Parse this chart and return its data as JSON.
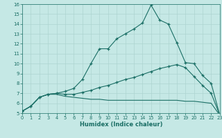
{
  "xlabel": "Humidex (Indice chaleur)",
  "xlim": [
    0,
    23
  ],
  "ylim": [
    5,
    16
  ],
  "xticks": [
    0,
    1,
    2,
    3,
    4,
    5,
    6,
    7,
    8,
    9,
    10,
    11,
    12,
    13,
    14,
    15,
    16,
    17,
    18,
    19,
    20,
    21,
    22,
    23
  ],
  "yticks": [
    5,
    6,
    7,
    8,
    9,
    10,
    11,
    12,
    13,
    14,
    15,
    16
  ],
  "bg_color": "#c5e8e5",
  "grid_color": "#aed4d0",
  "line_color": "#1a6e65",
  "line1_x": [
    0,
    1,
    2,
    3,
    4,
    5,
    6,
    7,
    8,
    9,
    10,
    11,
    12,
    13,
    14,
    15,
    16,
    17,
    18,
    19,
    20,
    21,
    22,
    23
  ],
  "line1_y": [
    5.2,
    5.7,
    6.6,
    6.9,
    7.0,
    7.2,
    7.5,
    8.4,
    10.0,
    11.5,
    11.5,
    12.5,
    13.0,
    13.5,
    14.1,
    15.9,
    14.4,
    14.0,
    12.1,
    10.1,
    10.0,
    8.8,
    8.0,
    4.8
  ],
  "line2_x": [
    0,
    1,
    2,
    3,
    4,
    5,
    6,
    7,
    8,
    9,
    10,
    11,
    12,
    13,
    14,
    15,
    16,
    17,
    18,
    19,
    20,
    21,
    22,
    23
  ],
  "line2_y": [
    5.2,
    5.7,
    6.6,
    6.9,
    7.0,
    6.9,
    6.9,
    7.1,
    7.3,
    7.6,
    7.8,
    8.1,
    8.4,
    8.6,
    8.9,
    9.2,
    9.5,
    9.7,
    9.9,
    9.6,
    8.7,
    7.8,
    7.0,
    4.8
  ],
  "line3_x": [
    0,
    1,
    2,
    3,
    4,
    5,
    6,
    7,
    8,
    9,
    10,
    11,
    12,
    13,
    14,
    15,
    16,
    17,
    18,
    19,
    20,
    21,
    22,
    23
  ],
  "line3_y": [
    5.2,
    5.7,
    6.6,
    6.9,
    6.9,
    6.7,
    6.6,
    6.5,
    6.4,
    6.4,
    6.3,
    6.3,
    6.3,
    6.3,
    6.3,
    6.3,
    6.3,
    6.3,
    6.3,
    6.2,
    6.2,
    6.1,
    6.0,
    4.8
  ]
}
